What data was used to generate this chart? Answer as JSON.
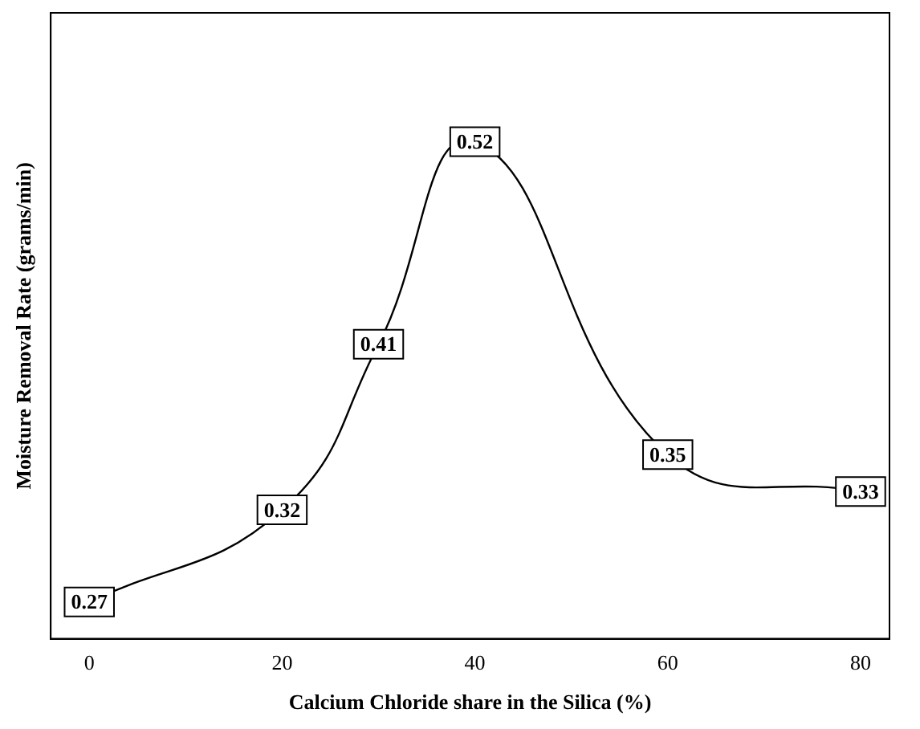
{
  "chart_data": {
    "type": "line",
    "xlabel": "Calcium Chloride share in the Silica (%)",
    "ylabel": "Moisture Removal Rate (grams/min)",
    "x": [
      0,
      20,
      30,
      40,
      60,
      80
    ],
    "series": [
      {
        "color": "#000000",
        "values": [
          0.27,
          0.32,
          0.41,
          0.52,
          0.35,
          0.33
        ]
      }
    ],
    "xlim": [
      -4,
      83
    ],
    "xticks": [
      0,
      20,
      40,
      60,
      80
    ],
    "ylim": [
      0.25,
      0.59
    ],
    "tick_labels": "x",
    "data_labels": true,
    "grid": false,
    "legend": false,
    "marker": "square",
    "line_style": "solid"
  }
}
